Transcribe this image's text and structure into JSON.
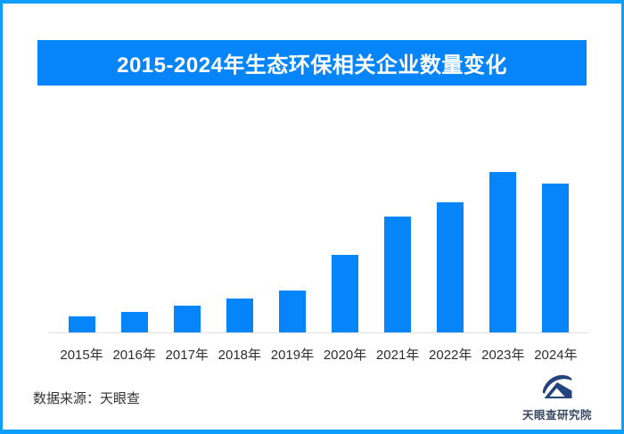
{
  "page": {
    "background": "#ffffff",
    "border_color": "#0d9dfd"
  },
  "header": {
    "title": "2015-2024年生态环保相关企业数量变化",
    "background": "#0685fa",
    "text_color": "#ffffff"
  },
  "chart_data": {
    "type": "bar",
    "title": "2015-2024年生态环保相关企业数量变化",
    "categories": [
      "2015年",
      "2016年",
      "2017年",
      "2018年",
      "2019年",
      "2020年",
      "2021年",
      "2022年",
      "2023年",
      "2024年"
    ],
    "values": [
      9.8,
      12.8,
      16.7,
      21.1,
      26.1,
      48.3,
      72.2,
      81.1,
      100,
      92.8
    ],
    "values_note": "source chart shows no numeric axis or data labels; values are relative bar heights with 2023 peak = 100",
    "bar_color": "#0685fa",
    "axis_line_color": "#e2e2e2",
    "xlabel": "",
    "ylabel": "",
    "ylim": [
      0,
      100
    ],
    "grid": false,
    "legend": false
  },
  "footer": {
    "source_label": "数据来源：天眼查",
    "logo_text": "天眼查研究院",
    "logo_color": "#24427c"
  }
}
